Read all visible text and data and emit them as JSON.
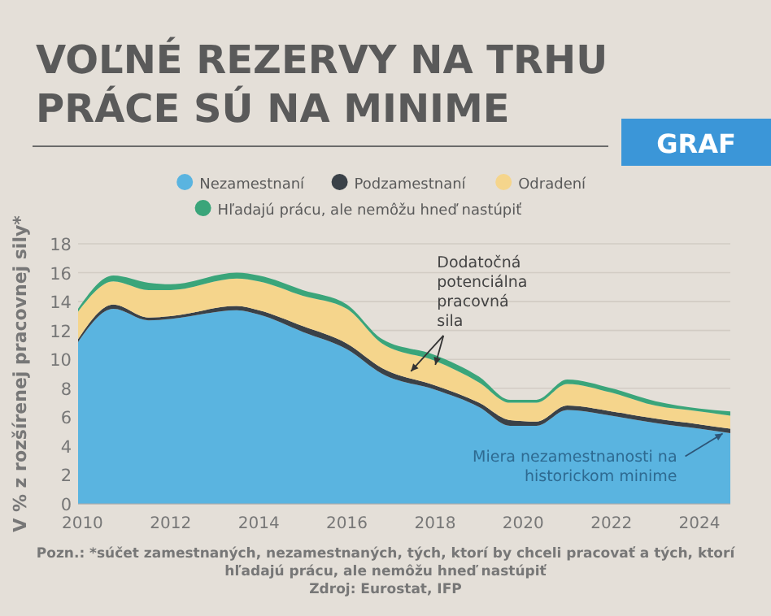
{
  "chart_data": {
    "type": "area",
    "stacked": true,
    "title": "VOĽNÉ REZERVY NA TRHU PRÁCE SÚ NA MINIME",
    "subtitle": "GRAF",
    "ylabel": "V % z rozšírenej pracovnej sily*",
    "x": [
      2009.9,
      2010.7,
      2011.5,
      2012,
      2013.5,
      2014,
      2015,
      2016,
      2016.8,
      2018,
      2019,
      2019.7,
      2020.3,
      2021,
      2022,
      2023,
      2024,
      2024.7
    ],
    "series": [
      {
        "name": "Nezamestnaní",
        "color": "#5ab4e0",
        "values": [
          11.2,
          13.5,
          12.7,
          12.8,
          13.4,
          13.1,
          11.9,
          10.7,
          9.0,
          7.9,
          6.7,
          5.4,
          5.4,
          6.5,
          6.1,
          5.6,
          5.2,
          4.9
        ]
      },
      {
        "name": "Podzamestnaní",
        "color": "#3a4148",
        "values": [
          0.2,
          0.3,
          0.2,
          0.2,
          0.3,
          0.3,
          0.4,
          0.4,
          0.4,
          0.3,
          0.3,
          0.4,
          0.3,
          0.3,
          0.3,
          0.3,
          0.3,
          0.3
        ]
      },
      {
        "name": "Odradení",
        "color": "#f5d58c",
        "values": [
          1.9,
          1.6,
          1.9,
          1.8,
          1.9,
          2.0,
          2.1,
          2.4,
          1.7,
          1.7,
          1.4,
          1.2,
          1.3,
          1.5,
          1.3,
          0.9,
          0.9,
          0.9
        ]
      },
      {
        "name": "Hľadajú prácu, ale nemôžu hneď nastúpiť",
        "color": "#3aa57a",
        "values": [
          0.2,
          0.4,
          0.5,
          0.4,
          0.4,
          0.4,
          0.4,
          0.3,
          0.3,
          0.4,
          0.4,
          0.2,
          0.2,
          0.3,
          0.3,
          0.3,
          0.2,
          0.3
        ]
      }
    ],
    "xlim": [
      2009.9,
      2024.7
    ],
    "xticks": [
      2010,
      2012,
      2014,
      2016,
      2018,
      2020,
      2022,
      2024
    ],
    "ylim": [
      0,
      18
    ],
    "yticks": [
      0,
      2,
      4,
      6,
      8,
      10,
      12,
      14,
      16,
      18
    ],
    "grid": "y",
    "legend": "top",
    "annotations": [
      {
        "text": "Dodatočná potenciálna pracovná sila",
        "x": 2017.6,
        "y": 9.4
      },
      {
        "text": "Miera nezamestnanosti na historickom minime",
        "x": 2024.6,
        "y": 5.2
      },
      "Pozn.: *súčet zamestnaných, nezamestnaných, tých, ktorí by chceli pracovať a tých, ktorí hľadajú prácu, ale nemôžu hneď nastúpiť",
      "Zdroj: Eurostat, IFP"
    ]
  }
}
